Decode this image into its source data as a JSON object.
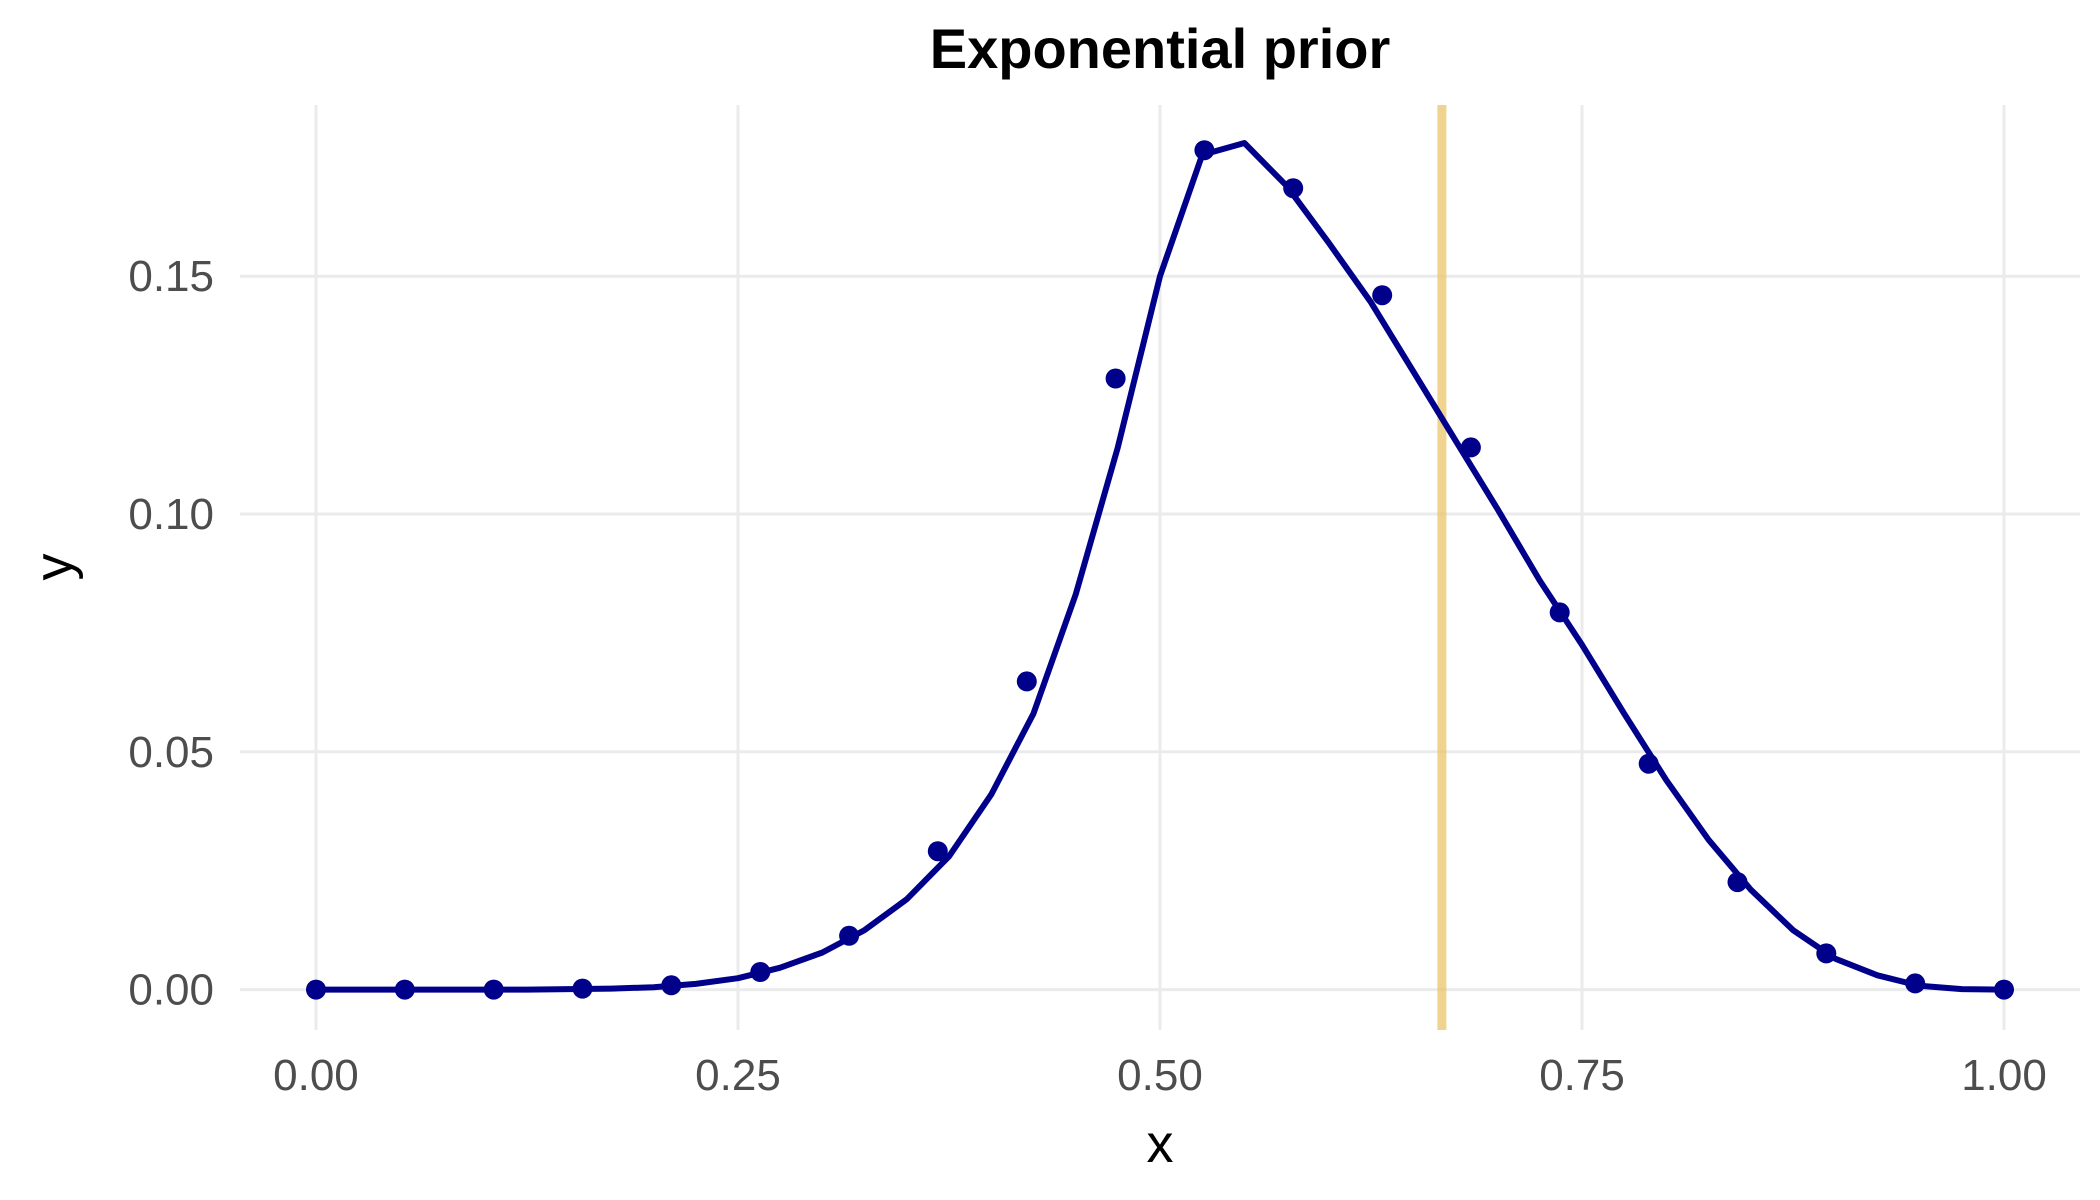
{
  "chart_data": {
    "type": "line",
    "title": "Exponential prior",
    "xlabel": "x",
    "ylabel": "y",
    "xlim": [
      -0.045,
      1.045
    ],
    "ylim": [
      -0.0085,
      0.186
    ],
    "x_ticks": [
      0.0,
      0.25,
      0.5,
      0.75,
      1.0
    ],
    "x_tick_labels": [
      "0.00",
      "0.25",
      "0.50",
      "0.75",
      "1.00"
    ],
    "y_ticks": [
      0.0,
      0.05,
      0.1,
      0.15
    ],
    "y_tick_labels": [
      "0.00",
      "0.05",
      "0.10",
      "0.15"
    ],
    "grid": true,
    "vline": {
      "x": 0.667,
      "color": "#e9c46a"
    },
    "series": [
      {
        "color": "#00008b",
        "curve": {
          "x": [
            0.0,
            0.025,
            0.05,
            0.075,
            0.1,
            0.125,
            0.15,
            0.175,
            0.2,
            0.225,
            0.25,
            0.275,
            0.3,
            0.325,
            0.35,
            0.375,
            0.4,
            0.425,
            0.45,
            0.475,
            0.5,
            0.525,
            0.55,
            0.575,
            0.6,
            0.625,
            0.65,
            0.675,
            0.7,
            0.725,
            0.75,
            0.775,
            0.8,
            0.825,
            0.85,
            0.875,
            0.9,
            0.925,
            0.95,
            0.975,
            1.0
          ],
          "y": [
            0.0,
            0.0,
            0.0,
            0.0,
            0.0,
            0.0,
            0.0001,
            0.0002,
            0.0005,
            0.0012,
            0.0024,
            0.0046,
            0.0078,
            0.0125,
            0.019,
            0.028,
            0.041,
            0.058,
            0.083,
            0.114,
            0.15,
            0.1755,
            0.178,
            0.169,
            0.157,
            0.1445,
            0.13,
            0.1155,
            0.101,
            0.086,
            0.0725,
            0.058,
            0.044,
            0.0315,
            0.021,
            0.0125,
            0.0065,
            0.003,
            0.0008,
            0.0001,
            0.0
          ],
          "x_from_label": [
            "0.000",
            "0.025",
            "0.050",
            "0.075",
            "0.100",
            "0.125",
            "0.150",
            "0.175",
            "0.200",
            "0.225",
            "0.250",
            "0.275",
            "0.300",
            "0.325",
            "0.350",
            "0.375",
            "0.400",
            "0.425",
            "0.450",
            "0.475",
            "0.500",
            "0.525",
            "0.550",
            "0.575",
            "0.600",
            "0.625",
            "0.650",
            "0.675",
            "0.700",
            "0.725",
            "0.750",
            "0.775",
            "0.800",
            "0.825",
            "0.850",
            "0.875",
            "0.900",
            "0.925",
            "0.950",
            "0.975",
            "1.000"
          ]
        },
        "points": {
          "x": [
            0.0,
            0.0526,
            0.1053,
            0.1579,
            0.2105,
            0.2632,
            0.3158,
            0.3684,
            0.4211,
            0.4737,
            0.5263,
            0.5789,
            0.6316,
            0.6842,
            0.7368,
            0.7895,
            0.8421,
            0.8947,
            0.9474,
            1.0
          ],
          "y": [
            0.0,
            0.0,
            0.0,
            0.0002,
            0.0009,
            0.0037,
            0.0113,
            0.0291,
            0.0648,
            0.1285,
            0.1765,
            0.1685,
            0.146,
            0.114,
            0.0793,
            0.0475,
            0.0226,
            0.0076,
            0.0013,
            0.0
          ]
        }
      }
    ]
  }
}
